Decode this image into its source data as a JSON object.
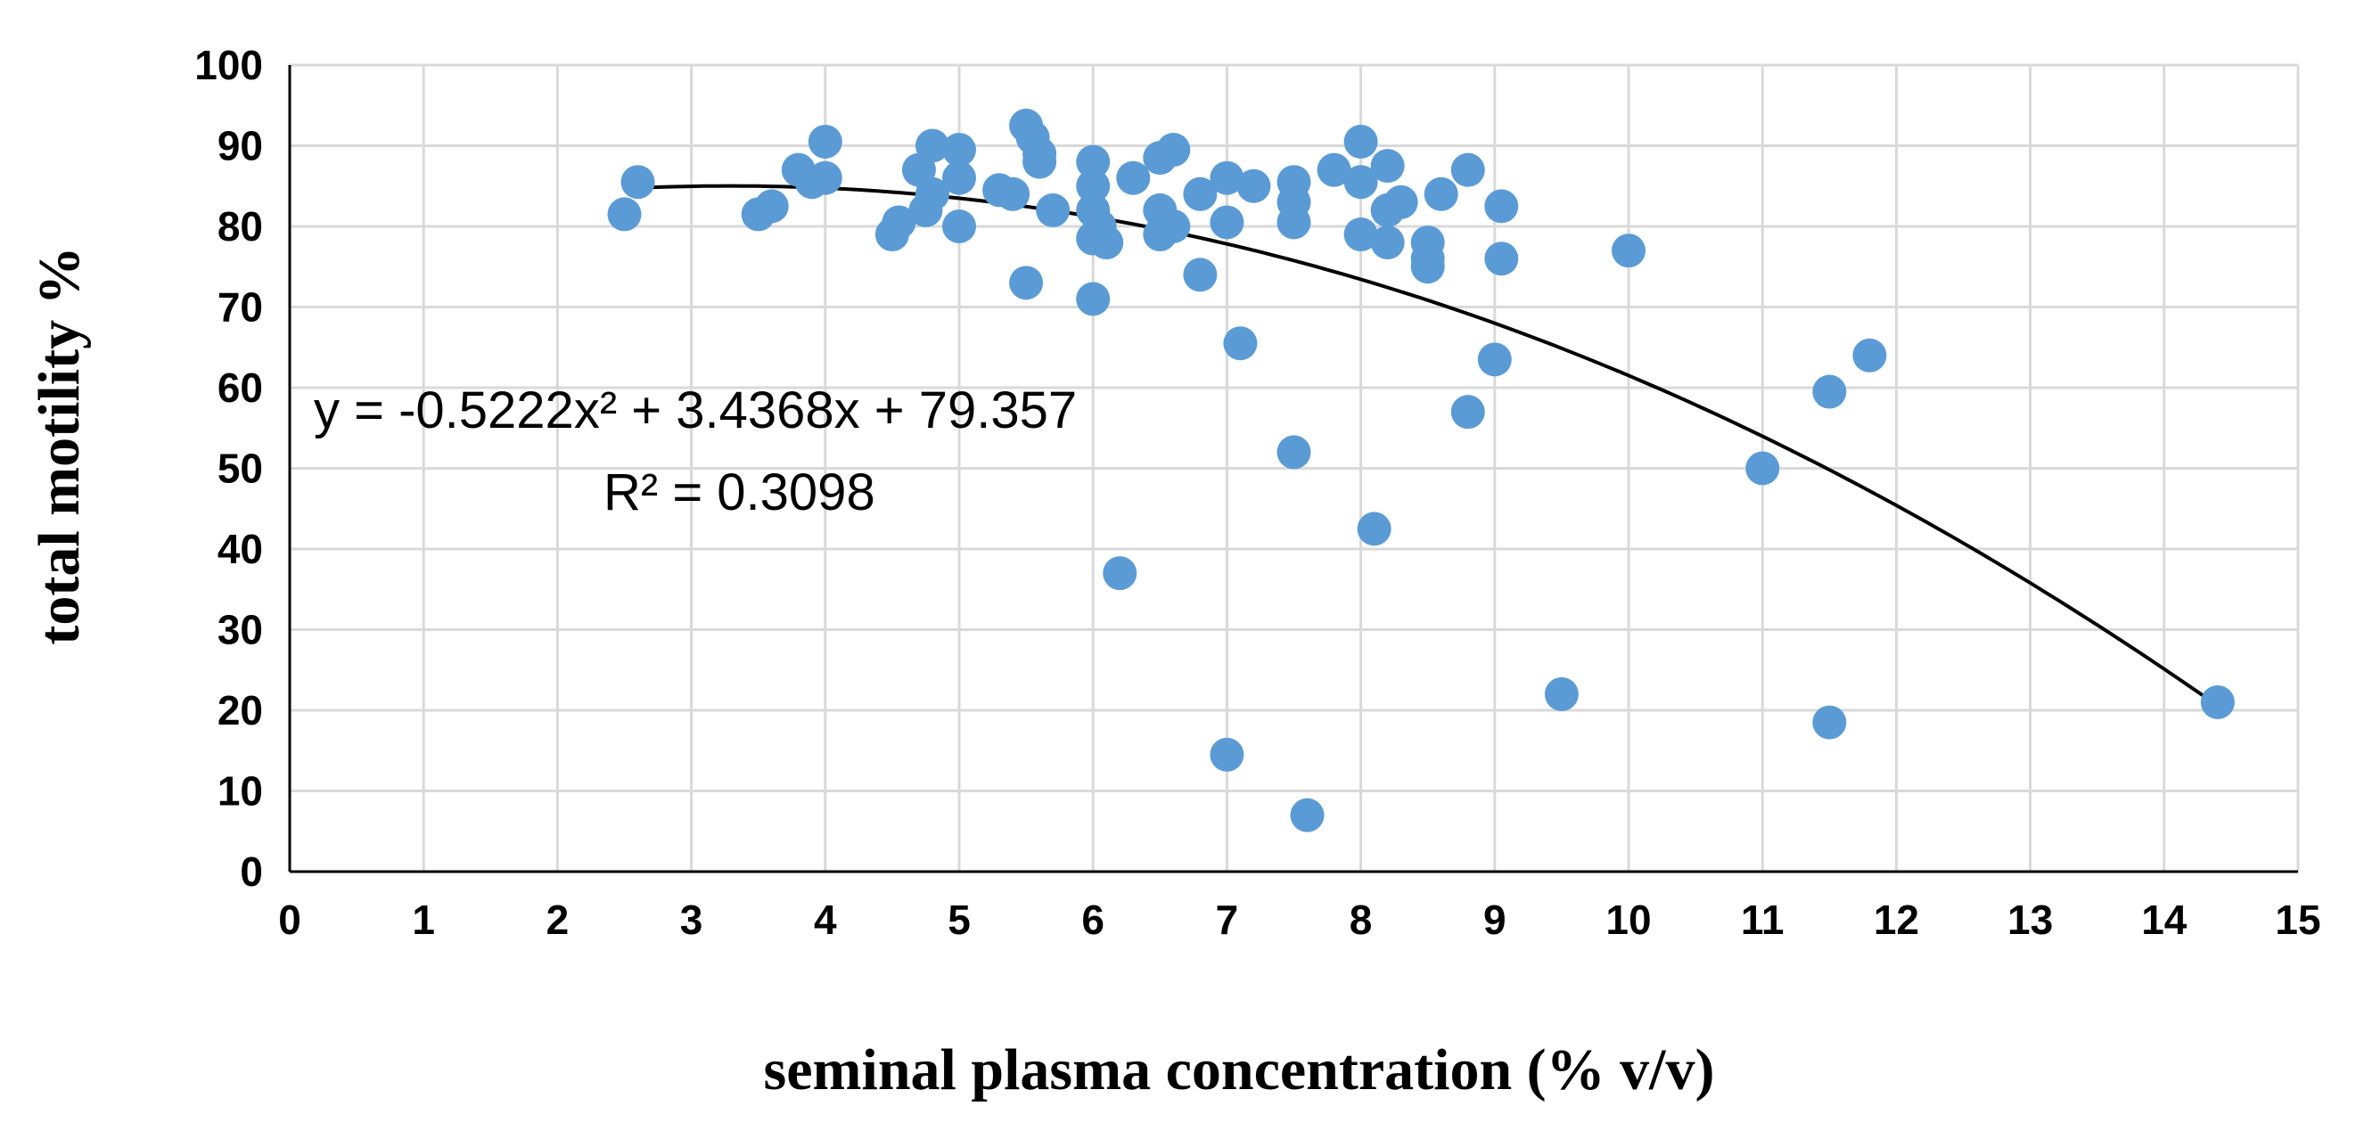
{
  "chart_data": {
    "type": "scatter",
    "title": "",
    "xlabel": "seminal plasma concentration (% v/v)",
    "ylabel": "total motility %",
    "xlim": [
      0,
      15
    ],
    "ylim": [
      0,
      100
    ],
    "x_ticks": [
      "0",
      "1",
      "2",
      "3",
      "4",
      "5",
      "6",
      "7",
      "8",
      "9",
      "10",
      "11",
      "12",
      "13",
      "14",
      "15"
    ],
    "y_ticks": [
      "0",
      "10",
      "20",
      "30",
      "40",
      "50",
      "60",
      "70",
      "80",
      "90",
      "100"
    ],
    "grid": true,
    "legend": "none",
    "colors": {
      "points": "#5b9bd5",
      "trendline": "#000000",
      "grid": "#d9d9d9",
      "axis": "#000000"
    },
    "series": [
      {
        "name": "total motility",
        "type": "scatter",
        "x": [
          2.5,
          2.6,
          3.5,
          3.6,
          3.8,
          3.9,
          4.0,
          4.0,
          4.5,
          4.55,
          4.7,
          4.75,
          4.8,
          4.8,
          5.0,
          5.0,
          5.0,
          5.3,
          5.4,
          5.5,
          5.5,
          5.55,
          5.6,
          5.6,
          5.7,
          6.0,
          6.0,
          6.0,
          6.0,
          6.0,
          6.05,
          6.1,
          6.2,
          6.3,
          6.5,
          6.5,
          6.5,
          6.6,
          6.6,
          6.8,
          6.8,
          7.0,
          7.0,
          7.0,
          7.1,
          7.2,
          7.5,
          7.5,
          7.5,
          7.5,
          7.6,
          7.8,
          8.0,
          8.0,
          8.0,
          8.1,
          8.2,
          8.2,
          8.2,
          8.3,
          8.5,
          8.5,
          8.5,
          8.6,
          8.8,
          8.8,
          9.0,
          9.05,
          9.05,
          9.5,
          10.0,
          11.0,
          11.5,
          11.5,
          11.8,
          14.4
        ],
        "y": [
          81.5,
          85.5,
          81.5,
          82.5,
          87.0,
          85.5,
          90.5,
          86.0,
          79.0,
          80.5,
          87.0,
          82.0,
          90.0,
          84.0,
          89.5,
          86.0,
          80.0,
          84.5,
          84.0,
          92.5,
          73.0,
          91.0,
          89.0,
          88.0,
          82.0,
          88.0,
          85.0,
          82.0,
          78.5,
          71.0,
          80.0,
          78.0,
          37.0,
          86.0,
          88.5,
          82.0,
          79.0,
          89.5,
          80.0,
          84.0,
          74.0,
          86.0,
          80.5,
          14.5,
          65.5,
          85.0,
          85.5,
          83.0,
          80.5,
          52.0,
          7.0,
          87.0,
          90.5,
          85.5,
          79.0,
          42.5,
          87.5,
          82.0,
          78.0,
          83.0,
          78.0,
          76.0,
          75.0,
          84.0,
          87.0,
          57.0,
          63.5,
          82.5,
          76.0,
          22.0,
          77.0,
          50.0,
          59.5,
          18.5,
          64.0,
          21.0
        ]
      }
    ],
    "trendline": {
      "name": "polynomial fit",
      "order": 2,
      "coefficients": {
        "a": -0.5222,
        "b": 3.4368,
        "c": 79.357
      },
      "x_range": [
        2.5,
        14.4
      ],
      "equation_label": "y = -0.5222x² + 3.4368x + 79.357",
      "r_squared_label": "R² = 0.3098"
    }
  }
}
